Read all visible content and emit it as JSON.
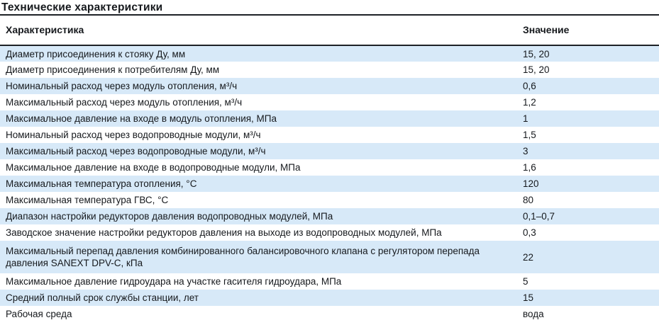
{
  "section": {
    "title": "Технические характеристики"
  },
  "table": {
    "headers": {
      "name": "Характеристика",
      "value": "Значение"
    },
    "rows": [
      {
        "name": "Диаметр присоединения к стояку Ду, мм",
        "value": "15, 20"
      },
      {
        "name": "Диаметр присоединения к потребителям Ду, мм",
        "value": "15, 20"
      },
      {
        "name": "Номинальный расход через модуль отопления, м³/ч",
        "value": "0,6"
      },
      {
        "name": "Максимальный расход через модуль отопления, м³/ч",
        "value": "1,2"
      },
      {
        "name": "Максимальное давление на входе в модуль отопления, МПа",
        "value": "1"
      },
      {
        "name": "Номинальный расход через водопроводные модули, м³/ч",
        "value": "1,5"
      },
      {
        "name": "Максимальный расход через водопроводные модули, м³/ч",
        "value": "3"
      },
      {
        "name": "Максимальное давление на входе в водопроводные модули, МПа",
        "value": "1,6"
      },
      {
        "name": "Максимальная температура отопления, °С",
        "value": "120"
      },
      {
        "name": "Максимальная температура ГВС, °С",
        "value": "80"
      },
      {
        "name": "Диапазон настройки редукторов давления водопроводных модулей, МПа",
        "value": "0,1–0,7"
      },
      {
        "name": "Заводское значение настройки редукторов давления на выходе из водопроводных модулей, МПа",
        "value": "0,3"
      },
      {
        "name": "Максимальный перепад давления комбинированного балансировочного клапана с регулятором перепада давления SANEXT DPV-C, кПа",
        "value": "22"
      },
      {
        "name": "Максимальное давление гидроудара на участке гасителя гидроудара, МПа",
        "value": "5"
      },
      {
        "name": "Средний полный срок службы станции, лет",
        "value": "15"
      },
      {
        "name": "Рабочая среда",
        "value": "вода"
      }
    ]
  },
  "colors": {
    "row_highlight": "#d7e9f8",
    "border": "#1d2126",
    "text": "#16191d"
  }
}
